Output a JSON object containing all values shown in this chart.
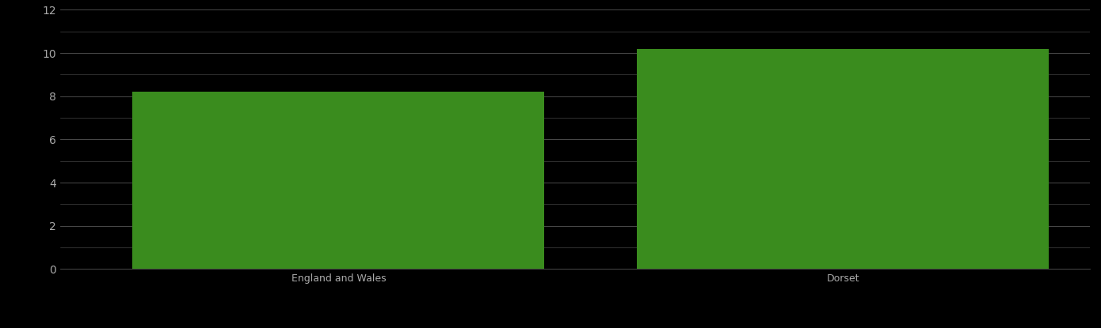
{
  "categories": [
    "England and Wales",
    "Dorset"
  ],
  "values": [
    8.2,
    10.2
  ],
  "bar_color": "#3a8c1e",
  "background_color": "#000000",
  "text_color": "#aaaaaa",
  "grid_color": "#555555",
  "ylim": [
    0,
    12
  ],
  "yticks": [
    0,
    2,
    4,
    6,
    8,
    10,
    12
  ],
  "minor_yticks": [
    1,
    3,
    5,
    7,
    9,
    11
  ],
  "figsize": [
    13.9,
    4.15
  ],
  "dpi": 100,
  "xlabel_fontsize": 9,
  "ytick_fontsize": 10
}
